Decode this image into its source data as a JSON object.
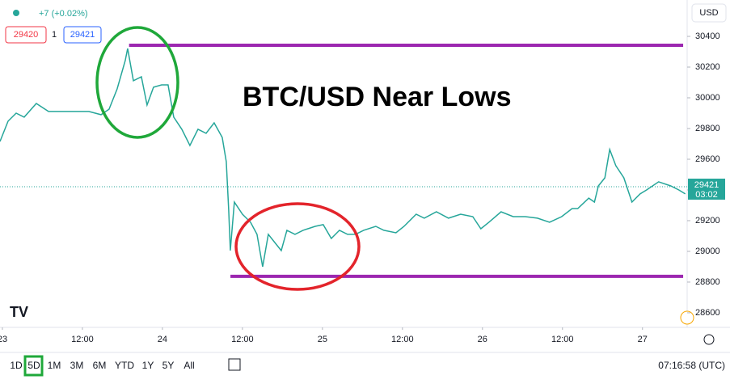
{
  "header": {
    "change": "+7 (+0.02%)",
    "bid": "29420",
    "spread": "1",
    "ask": "29421",
    "currency": "USD"
  },
  "toolbar": {
    "ranges": [
      "1D",
      "5D",
      "1M",
      "3M",
      "6M",
      "YTD",
      "1Y",
      "5Y",
      "All"
    ],
    "selected": 1,
    "clock": "07:16:58 (UTC)"
  },
  "chart_data": {
    "type": "line",
    "annotation": "BTC/USD Near Lows",
    "x": [
      -0.36,
      0.85,
      2.06,
      3.27,
      5.09,
      6.91,
      8.73,
      10.55,
      12.97,
      14.79,
      16.0,
      17.21,
      18.42,
      18.79,
      19.64,
      20.85,
      21.7,
      22.67,
      23.88,
      24.85,
      25.7,
      26.91,
      28.12,
      29.33,
      30.55,
      31.76,
      32.97,
      33.58,
      33.94,
      34.18,
      34.79,
      36.0,
      37.21,
      38.18,
      39.03,
      39.88,
      40.85,
      41.82,
      42.67,
      43.88,
      45.09,
      46.91,
      48.12,
      49.33,
      50.55,
      51.76,
      52.97,
      54.18,
      56.0,
      57.21,
      59.03,
      60.24,
      62.06,
      63.27,
      65.09,
      66.91,
      68.73,
      70.55,
      71.76,
      72.97,
      74.79,
      76.61,
      78.42,
      80.24,
      82.06,
      83.88,
      85.45,
      86.3,
      87.94,
      88.79,
      89.39,
      90.36,
      91.09,
      92.0,
      93.21,
      94.42,
      95.64,
      96.61,
      98.42,
      100.24,
      101.45,
      102.42
    ],
    "series": [
      {
        "name": "BTC/USD",
        "color": "#26a69a",
        "values": [
          29716,
          29848,
          29900,
          29874,
          29963,
          29911,
          29911,
          29911,
          29911,
          29890,
          29926,
          30058,
          30242,
          30321,
          30111,
          30137,
          29953,
          30069,
          30084,
          30084,
          29874,
          29795,
          29690,
          29795,
          29769,
          29837,
          29742,
          29584,
          29269,
          29005,
          29321,
          29242,
          29190,
          29111,
          28900,
          29111,
          29058,
          29005,
          29137,
          29111,
          29137,
          29163,
          29174,
          29084,
          29137,
          29111,
          29111,
          29137,
          29163,
          29137,
          29121,
          29163,
          29242,
          29216,
          29258,
          29216,
          29242,
          29226,
          29147,
          29190,
          29258,
          29226,
          29226,
          29216,
          29190,
          29226,
          29279,
          29279,
          29347,
          29321,
          29426,
          29479,
          29663,
          29558,
          29479,
          29321,
          29374,
          29400,
          29453,
          29426,
          29400,
          29374
        ]
      }
    ],
    "last_price": 29421,
    "countdown": "03:02",
    "levels": [
      {
        "value": 30342,
        "x": [
          19.0,
          102.1
        ],
        "color": "#9c27b0"
      },
      {
        "value": 28837,
        "x": [
          34.2,
          102.1
        ],
        "color": "#9c27b0"
      }
    ],
    "xlim": [
      -0.36,
      102.7
    ],
    "xticks": [
      {
        "value": 0,
        "label": "23"
      },
      {
        "value": 12,
        "label": "12:00"
      },
      {
        "value": 24,
        "label": "24"
      },
      {
        "value": 36,
        "label": "12:00"
      },
      {
        "value": 48,
        "label": "25"
      },
      {
        "value": 60,
        "label": "12:00"
      },
      {
        "value": 72,
        "label": "26"
      },
      {
        "value": 84,
        "label": "12:00"
      },
      {
        "value": 96,
        "label": "27"
      }
    ],
    "ylim": [
      28505,
      30637
    ],
    "yticks": [
      28600,
      28800,
      29000,
      29200,
      29400,
      29600,
      29800,
      30000,
      30200,
      30400
    ],
    "grid": false
  }
}
